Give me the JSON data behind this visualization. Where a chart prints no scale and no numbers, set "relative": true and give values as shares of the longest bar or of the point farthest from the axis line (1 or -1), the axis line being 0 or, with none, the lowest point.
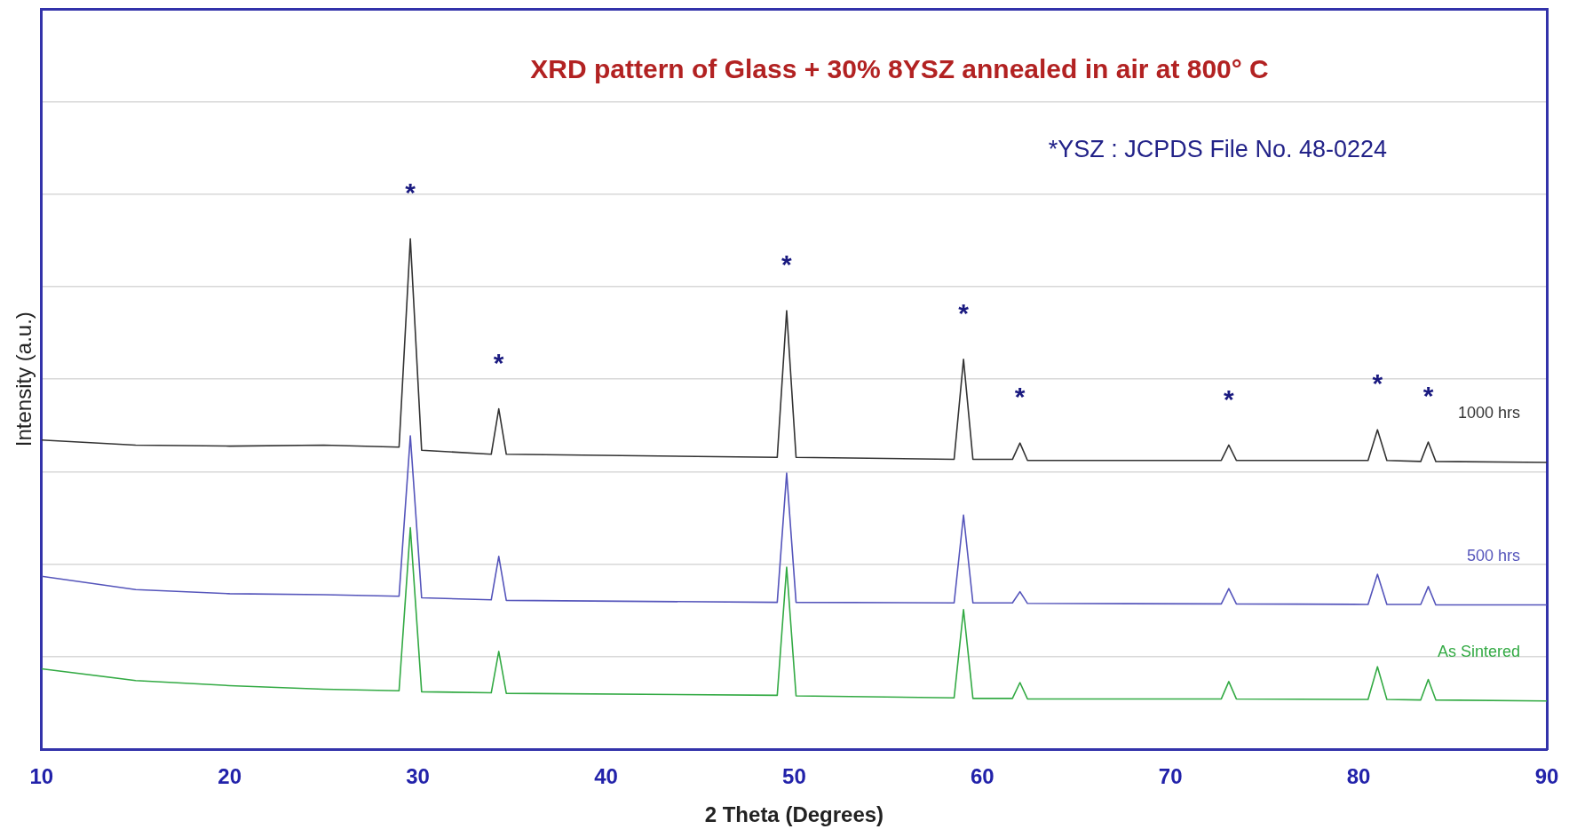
{
  "chart_data": {
    "type": "line",
    "relative": true,
    "title": "XRD pattern of Glass + 30% 8YSZ annealed in air at 800° C",
    "xlabel": "2 Theta (Degrees)",
    "ylabel": "Intensity (a.u.)",
    "xlim": [
      10,
      90
    ],
    "xticks": [
      10,
      20,
      30,
      40,
      50,
      60,
      70,
      80,
      90
    ],
    "grid": "y",
    "legend": false,
    "marker": "none",
    "line_style": "solid",
    "x": [
      10,
      15,
      20,
      25,
      29,
      29.6,
      30.2,
      33.9,
      34.3,
      34.7,
      49.1,
      49.6,
      50.1,
      58.5,
      59.0,
      59.5,
      61.6,
      62.0,
      62.4,
      72.7,
      73.1,
      73.5,
      80.5,
      81.0,
      81.5,
      83.3,
      83.7,
      84.1,
      90
    ],
    "series": [
      {
        "name": "1000 hrs",
        "color": "#333333",
        "values": [
          0.606,
          0.596,
          0.594,
          0.596,
          0.592,
          1.0,
          0.586,
          0.578,
          0.667,
          0.578,
          0.572,
          0.859,
          0.572,
          0.568,
          0.764,
          0.568,
          0.568,
          0.6,
          0.566,
          0.566,
          0.596,
          0.566,
          0.566,
          0.626,
          0.566,
          0.564,
          0.602,
          0.564,
          0.562
        ]
      },
      {
        "name": "500 hrs",
        "color": "#5555bb",
        "values": [
          0.339,
          0.313,
          0.305,
          0.303,
          0.3,
          0.614,
          0.297,
          0.293,
          0.378,
          0.292,
          0.288,
          0.541,
          0.288,
          0.287,
          0.459,
          0.287,
          0.287,
          0.309,
          0.286,
          0.285,
          0.315,
          0.285,
          0.284,
          0.343,
          0.284,
          0.284,
          0.319,
          0.283,
          0.283
        ]
      },
      {
        "name": "As Sintered",
        "color": "#33aa44",
        "values": [
          0.158,
          0.135,
          0.125,
          0.118,
          0.115,
          0.434,
          0.113,
          0.111,
          0.192,
          0.11,
          0.106,
          0.357,
          0.105,
          0.101,
          0.274,
          0.1,
          0.1,
          0.131,
          0.099,
          0.099,
          0.133,
          0.099,
          0.098,
          0.162,
          0.098,
          0.097,
          0.137,
          0.097,
          0.095
        ]
      }
    ],
    "annotations": [
      "*YSZ : JCPDS File No. 48-0224",
      {
        "text": "*",
        "x": 29.6,
        "y": 1.0
      },
      {
        "text": "*",
        "x": 34.3,
        "y": 0.667
      },
      {
        "text": "*",
        "x": 49.6,
        "y": 0.859
      },
      {
        "text": "*",
        "x": 59.0,
        "y": 0.764
      },
      {
        "text": "*",
        "x": 62.0,
        "y": 0.6
      },
      {
        "text": "*",
        "x": 73.1,
        "y": 0.596
      },
      {
        "text": "*",
        "x": 81.0,
        "y": 0.626
      },
      {
        "text": "*",
        "x": 83.7,
        "y": 0.602
      }
    ]
  }
}
